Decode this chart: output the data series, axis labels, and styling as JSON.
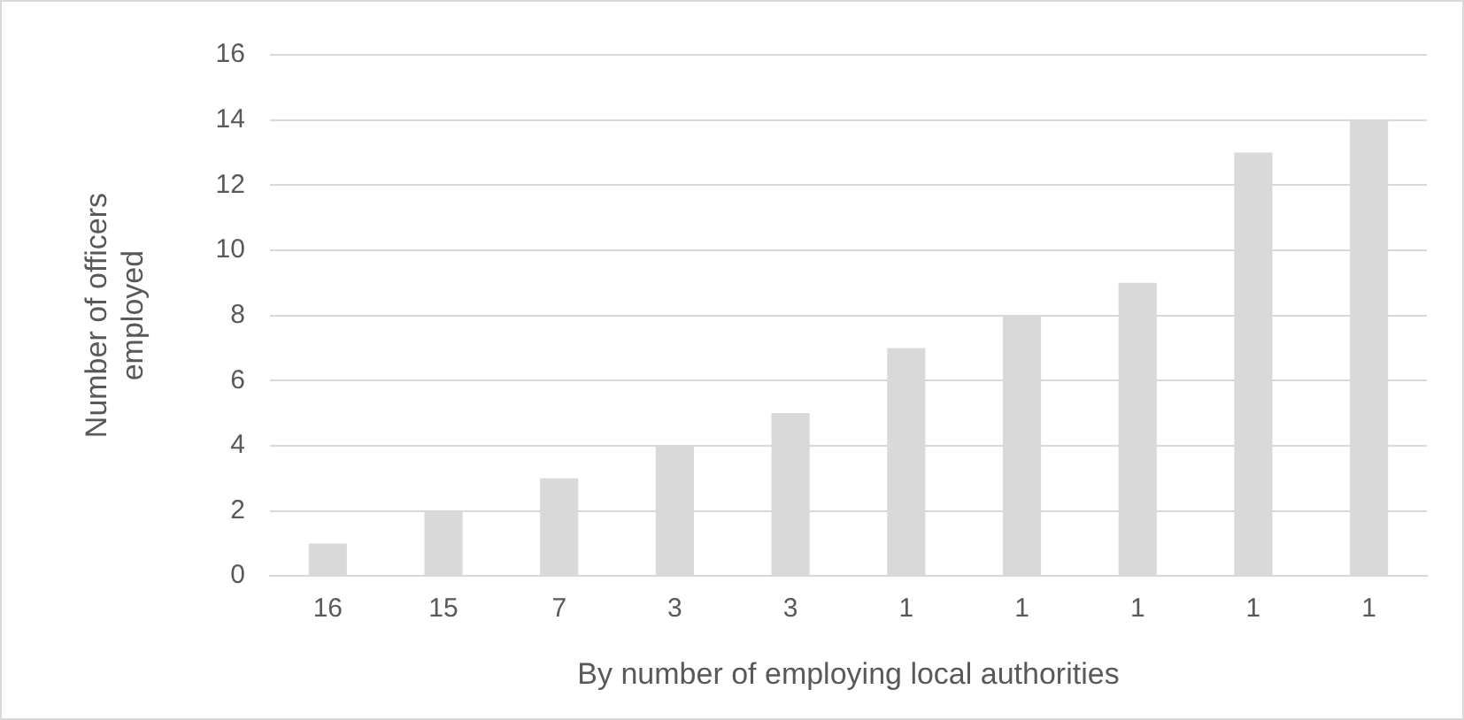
{
  "chart_data": {
    "type": "bar",
    "xlabel": "By number of employing local authorities",
    "ylabel": "Number of officers employed",
    "categories": [
      "16",
      "15",
      "7",
      "3",
      "3",
      "1",
      "1",
      "1",
      "1",
      "1"
    ],
    "values": [
      1,
      2,
      3,
      4,
      5,
      7,
      8,
      9,
      13,
      14
    ],
    "color": "#d9d9d9",
    "ylim": [
      0,
      16
    ],
    "yticks": [
      0,
      2,
      4,
      6,
      8,
      10,
      12,
      14,
      16
    ],
    "grid": "y",
    "legend": false
  }
}
